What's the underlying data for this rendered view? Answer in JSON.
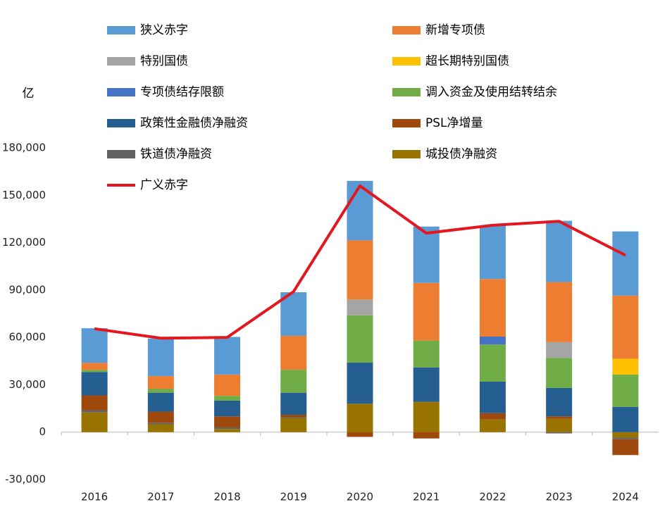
{
  "chart_data": {
    "type": "bar",
    "stacked": true,
    "y_label": "亿",
    "categories": [
      "2016",
      "2017",
      "2018",
      "2019",
      "2020",
      "2021",
      "2022",
      "2023",
      "2024"
    ],
    "ylim": [
      -30000,
      180000
    ],
    "yticks": [
      {
        "value": -30000,
        "label": "-30,000"
      },
      0,
      {
        "value": 30000,
        "label": "30,000"
      },
      {
        "value": 60000,
        "label": "60,000"
      },
      {
        "value": 90000,
        "label": "90,000"
      },
      {
        "value": 120000,
        "label": "120,000"
      },
      {
        "value": 150000,
        "label": "150,000"
      },
      {
        "value": 180000,
        "label": "180,000"
      }
    ],
    "grid": false,
    "series": [
      {
        "name": "狭义赤字",
        "color": "#5b9bd5",
        "values": [
          21900,
          23800,
          23800,
          27600,
          37600,
          35700,
          33700,
          38800,
          40600
        ]
      },
      {
        "name": "新增专项债",
        "color": "#ed7d31",
        "values": [
          4500,
          8000,
          13500,
          21500,
          37500,
          36500,
          36500,
          38000,
          40000
        ]
      },
      {
        "name": "特别国债",
        "color": "#a5a5a5",
        "values": [
          0,
          0,
          0,
          0,
          10000,
          0,
          0,
          10000,
          0
        ]
      },
      {
        "name": "超长期特别国债",
        "color": "#ffc000",
        "values": [
          0,
          0,
          0,
          0,
          0,
          0,
          0,
          0,
          10000
        ]
      },
      {
        "name": "专项债结存限额",
        "color": "#4472c4",
        "values": [
          0,
          0,
          0,
          0,
          0,
          0,
          5000,
          0,
          0
        ]
      },
      {
        "name": "调入资金及使用结转结余",
        "color": "#70ad47",
        "values": [
          1300,
          2500,
          3000,
          14500,
          30000,
          17000,
          23500,
          19000,
          20500
        ]
      },
      {
        "name": "政策性金融债净融资",
        "color": "#255e91",
        "values": [
          14800,
          12000,
          10000,
          14000,
          26000,
          21500,
          20000,
          18000,
          16000
        ]
      },
      {
        "name": "PSL净增量",
        "color": "#9e480e",
        "values": [
          9400,
          7000,
          7000,
          1500,
          -3000,
          -4000,
          4000,
          1500,
          -10000
        ]
      },
      {
        "name": "铁道债净融资",
        "color": "#636363",
        "values": [
          1400,
          1000,
          1000,
          500,
          0,
          500,
          0,
          -800,
          -1000
        ]
      },
      {
        "name": "城投债净融资",
        "color": "#997300",
        "values": [
          12500,
          5000,
          2000,
          9000,
          18000,
          19000,
          8000,
          8500,
          -3500
        ]
      },
      {
        "name": "广义赤字",
        "color": "#e3171d",
        "type": "line",
        "values": [
          65500,
          59500,
          60000,
          89000,
          156000,
          126000,
          131000,
          133500,
          112000
        ]
      }
    ]
  }
}
